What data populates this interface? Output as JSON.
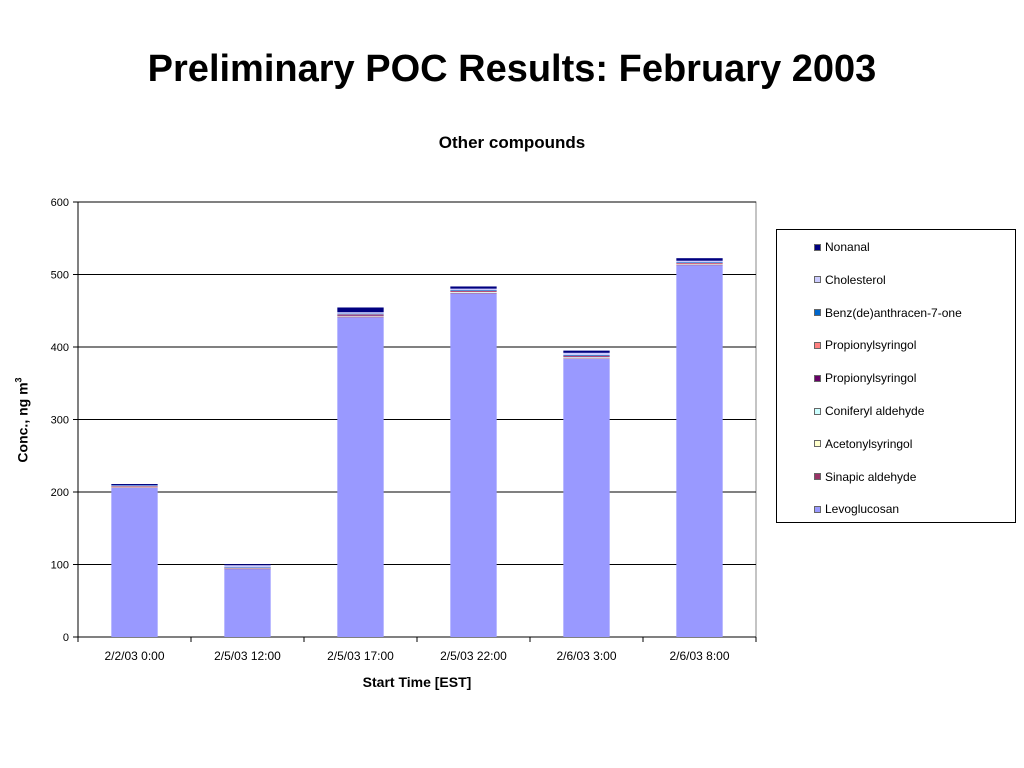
{
  "slide": {
    "title": "Preliminary POC Results: February 2003"
  },
  "chart_data": {
    "type": "bar",
    "stacked": true,
    "title": "Other compounds",
    "xlabel": "Start Time [EST]",
    "ylabel": "Conc., ng m",
    "ylabel_superscript": "3",
    "ylim": [
      0,
      600
    ],
    "yticks": [
      0,
      100,
      200,
      300,
      400,
      500,
      600
    ],
    "grid": true,
    "legend_position": "right",
    "categories": [
      "2/2/03 0:00",
      "2/5/03 12:00",
      "2/5/03 17:00",
      "2/5/03 22:00",
      "2/6/03 3:00",
      "2/6/03 8:00"
    ],
    "series": [
      {
        "name": "Levoglucosan",
        "color": "#9999ff",
        "values": [
          206,
          94,
          441,
          474,
          384,
          513
        ]
      },
      {
        "name": "Sinapic aldehyde",
        "color": "#993366",
        "values": [
          0.5,
          0.3,
          1,
          0.5,
          0.5,
          0.5
        ]
      },
      {
        "name": "Acetonylsyringol",
        "color": "#ffffcc",
        "values": [
          0.5,
          0.3,
          0.5,
          0.5,
          0.5,
          0.5
        ]
      },
      {
        "name": "Coniferyl aldehyde",
        "color": "#ccffff",
        "values": [
          0.5,
          0.5,
          0.5,
          1,
          1,
          0.5
        ]
      },
      {
        "name": "Propionylsyringol",
        "color": "#660066",
        "values": [
          0.5,
          0.3,
          1,
          0.5,
          1,
          0.5
        ]
      },
      {
        "name": "Propionylsyringol",
        "color": "#ff8080",
        "values": [
          0.5,
          0.3,
          1,
          1,
          1,
          1
        ]
      },
      {
        "name": "Benz(de)anthracen-7-one",
        "color": "#0066cc",
        "values": [
          0.5,
          0.3,
          1,
          1,
          1,
          1
        ]
      },
      {
        "name": "Cholesterol",
        "color": "#ccccff",
        "values": [
          0.5,
          3,
          2,
          2,
          3,
          2
        ]
      },
      {
        "name": "Nonanal",
        "color": "#000080",
        "values": [
          1.5,
          1.5,
          6.5,
          3,
          3,
          3.5
        ]
      }
    ]
  }
}
